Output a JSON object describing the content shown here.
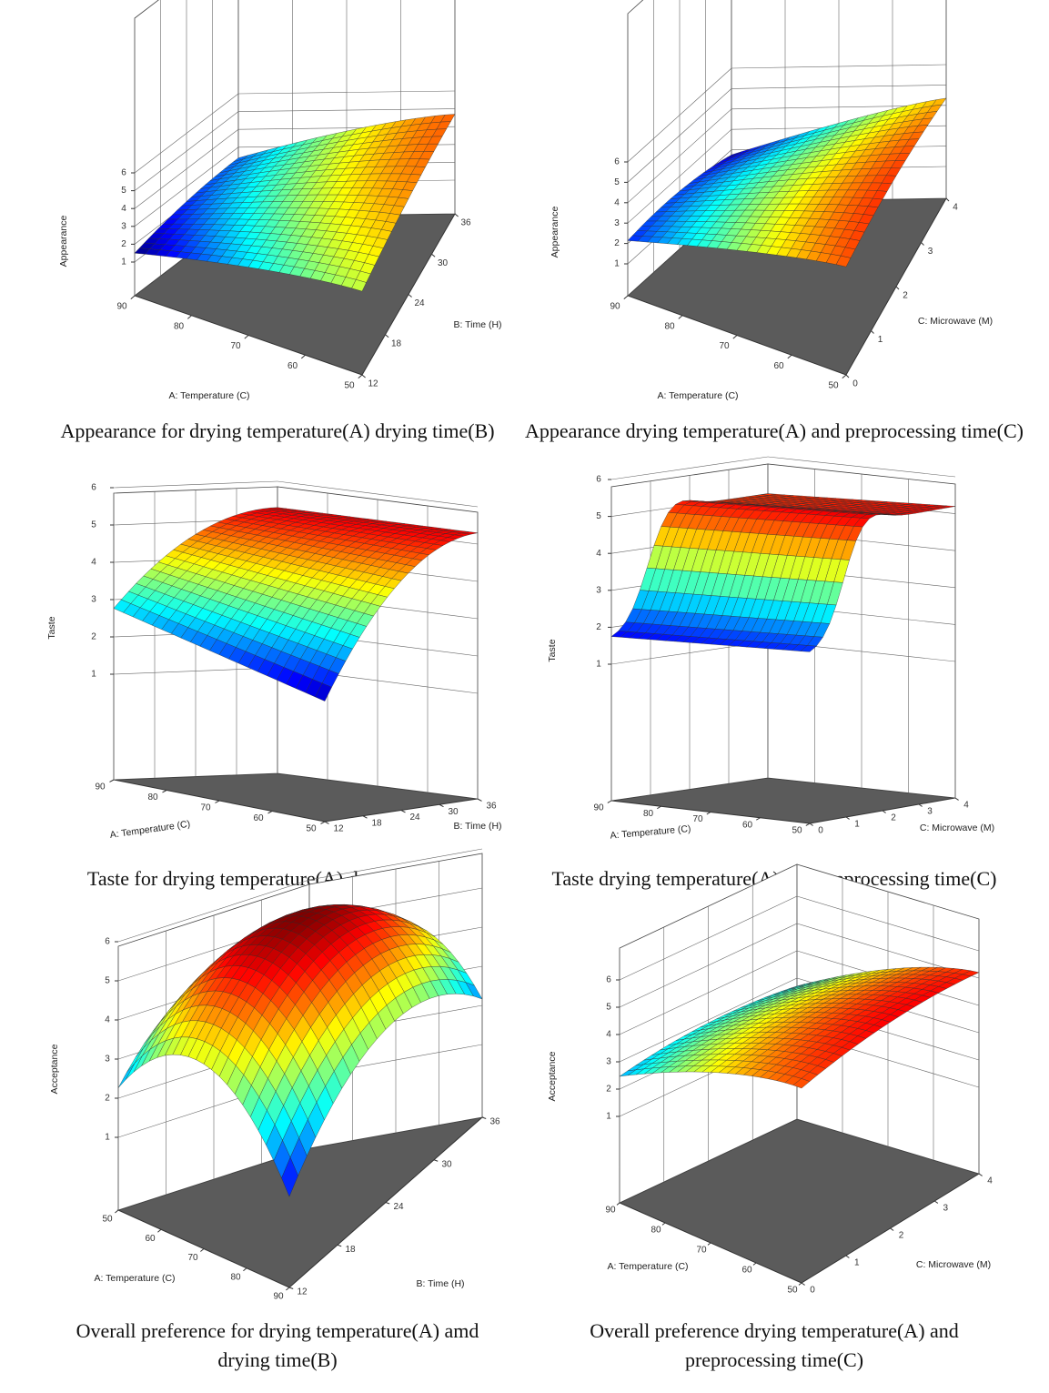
{
  "chart_data": [
    {
      "type": "surface",
      "title": [
        "Appearance for drying temperature(A) drying time(B)"
      ],
      "zlabel": "Appearance",
      "xlabel": "A: Temperature (C)",
      "ylabel": "B: Time (H)",
      "xlim": [
        50,
        90
      ],
      "xticks": [
        90,
        80,
        70,
        60,
        50
      ],
      "ylim": [
        12,
        36
      ],
      "yticks": [
        12,
        18,
        24,
        30,
        36
      ],
      "zlim": [
        1,
        6
      ],
      "zticks": [
        1,
        2,
        3,
        4,
        5,
        6
      ]
    },
    {
      "type": "surface",
      "title": [
        "Appearance drying temperature(A) and preprocessing time(C)"
      ],
      "zlabel": "Appearance",
      "xlabel": "A: Temperature (C)",
      "ylabel": "C: Microwave (M)",
      "xlim": [
        50,
        90
      ],
      "xticks": [
        90,
        80,
        70,
        60,
        50
      ],
      "ylim": [
        0,
        4
      ],
      "yticks": [
        0,
        1,
        2,
        3,
        4
      ],
      "zlim": [
        1,
        6
      ],
      "zticks": [
        1,
        2,
        3,
        4,
        5,
        6
      ]
    },
    {
      "type": "surface",
      "title": [
        "Taste for drying temperature(A) drying time(B)"
      ],
      "zlabel": "Taste",
      "xlabel": "A: Temperature (C)",
      "ylabel": "B: Time (H)",
      "xlim": [
        50,
        90
      ],
      "xticks": [
        90,
        80,
        70,
        60,
        50
      ],
      "ylim": [
        12,
        36
      ],
      "yticks": [
        12,
        18,
        24,
        30,
        36
      ],
      "zlim": [
        1,
        6
      ],
      "zticks": [
        1,
        2,
        3,
        4,
        5,
        6
      ]
    },
    {
      "type": "surface",
      "title": [
        "Taste drying temperature(A) and preprocessing time(C)"
      ],
      "zlabel": "Taste",
      "xlabel": "A: Temperature (C)",
      "ylabel": "C: Microwave (M)",
      "xlim": [
        50,
        90
      ],
      "xticks": [
        90,
        80,
        70,
        60,
        50
      ],
      "ylim": [
        0,
        4
      ],
      "yticks": [
        0,
        1,
        2,
        3,
        4
      ],
      "zlim": [
        1,
        6
      ],
      "zticks": [
        1,
        2,
        3,
        4,
        5,
        6
      ]
    },
    {
      "type": "surface",
      "title": [
        "Overall preference for drying temperature(A) amd",
        "drying time(B)"
      ],
      "zlabel": "Acceptance",
      "xlabel": "A: Temperature (C)",
      "ylabel": "B: Time (H)",
      "xlim": [
        50,
        90
      ],
      "xticks": [
        50,
        60,
        70,
        80,
        90
      ],
      "ylim": [
        12,
        36
      ],
      "yticks": [
        12,
        18,
        24,
        30,
        36
      ],
      "zlim": [
        1,
        6
      ],
      "zticks": [
        1,
        2,
        3,
        4,
        5,
        6
      ]
    },
    {
      "type": "surface",
      "title": [
        "Overall preference drying temperature(A) and",
        "preprocessing time(C)"
      ],
      "zlabel": "Acceptance",
      "xlabel": "A: Temperature (C)",
      "ylabel": "C: Microwave (M)",
      "xlim": [
        50,
        90
      ],
      "xticks": [
        90,
        80,
        70,
        60,
        50
      ],
      "ylim": [
        0,
        4
      ],
      "yticks": [
        0,
        1,
        2,
        3,
        4
      ],
      "zlim": [
        1,
        6
      ],
      "zticks": [
        1,
        2,
        3,
        4,
        5,
        6
      ]
    }
  ]
}
